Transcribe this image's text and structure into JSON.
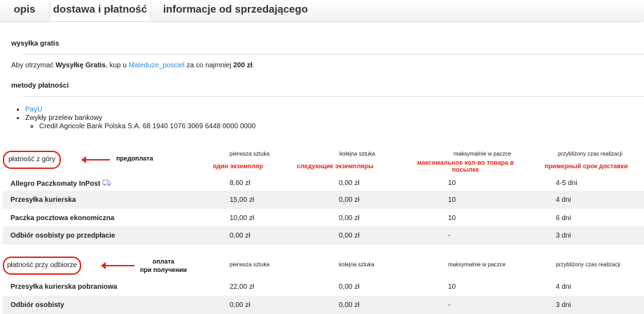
{
  "tabs": [
    {
      "label": "opis"
    },
    {
      "label": "dostawa i płatność",
      "active": true
    },
    {
      "label": "informacje od sprzedającego"
    }
  ],
  "free_shipping": {
    "heading": "wysyłka gratis",
    "text_pre": "Aby otrzymać ",
    "bold1": "Wysyłkę Gratis",
    "text_mid": ", kup u ",
    "seller_link": "Maleduze_posciel",
    "text_mid2": " za co najmniej ",
    "bold2": "200 zł",
    "text_end": "."
  },
  "payment_methods": {
    "heading": "metody płatności",
    "items": [
      "PayU",
      "Zwykły przelew bankowy"
    ],
    "bank_account": "Credit Agricole Bank Polska S.A. 68 1940 1076 3069 6448 0000 0000"
  },
  "columns": [
    "pierwsza sztuka",
    "kolejna sztuka",
    "maksymalnie w paczce",
    "przybliżony czas realizacji"
  ],
  "prepaid": {
    "title": "płatność z góry",
    "annotation": "предоплата",
    "column_annotations": [
      "один экземпляр",
      "следующие экземпляры",
      "максимальное кол-во товара в посылке",
      "примерный срок доставки"
    ],
    "rows": [
      {
        "name": "Allegro Paczkomaty InPost",
        "icon": "truck-icon",
        "first": "8,60 zł",
        "next": "0,00 zł",
        "max": "10",
        "time": "4-5 dni"
      },
      {
        "name": "Przesyłka kurierska",
        "first": "15,00 zł",
        "next": "0,00 zł",
        "max": "10",
        "time": "4 dni"
      },
      {
        "name": "Paczka pocztowa ekonomiczna",
        "first": "10,00 zł",
        "next": "0,00 zł",
        "max": "10",
        "time": "6 dni"
      },
      {
        "name": "Odbiór osobisty po przedpłacie",
        "first": "0,00 zł",
        "next": "0,00 zł",
        "max": "-",
        "time": "3 dni"
      }
    ]
  },
  "cod": {
    "title": "płatność przy odbiorze",
    "annotation": "оплата\nпри получении",
    "rows": [
      {
        "name": "Przesyłka kurierska pobraniowa",
        "first": "22,00 zł",
        "next": "0,00 zł",
        "max": "10",
        "time": "4 dni"
      },
      {
        "name": "Odbiór osobisty",
        "first": "0,00 zł",
        "next": "0,00 zł",
        "max": "-",
        "time": "3 dni"
      }
    ]
  },
  "colors": {
    "link": "#2a8ad8",
    "annotation": "#e3271b",
    "icon": "#9a8fd0"
  }
}
